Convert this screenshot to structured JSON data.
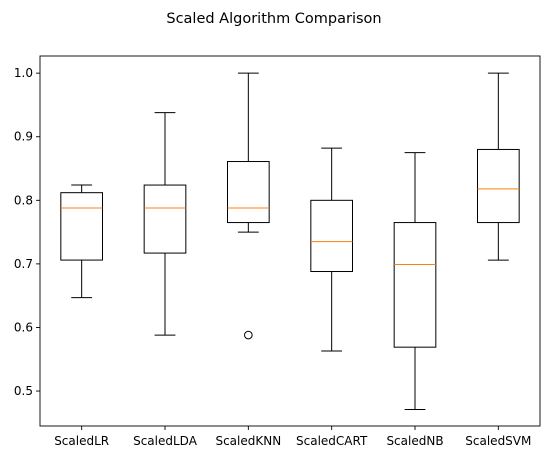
{
  "chart_data": {
    "type": "boxplot",
    "title": "Scaled Algorithm Comparison",
    "xlabel": "",
    "ylabel": "",
    "ylim": [
      0.445,
      1.027
    ],
    "yticks": [
      0.5,
      0.6,
      0.7,
      0.8,
      0.9,
      1.0
    ],
    "ytick_labels": [
      "0.5",
      "0.6",
      "0.7",
      "0.8",
      "0.9",
      "1.0"
    ],
    "grid": false,
    "categories": [
      "ScaledLR",
      "ScaledLDA",
      "ScaledKNN",
      "ScaledCART",
      "ScaledNB",
      "ScaledSVM"
    ],
    "boxes": [
      {
        "name": "ScaledLR",
        "whisker_low": 0.647,
        "q1": 0.706,
        "median": 0.788,
        "q3": 0.812,
        "whisker_high": 0.824,
        "outliers": []
      },
      {
        "name": "ScaledLDA",
        "whisker_low": 0.588,
        "q1": 0.717,
        "median": 0.788,
        "q3": 0.824,
        "whisker_high": 0.938,
        "outliers": []
      },
      {
        "name": "ScaledKNN",
        "whisker_low": 0.75,
        "q1": 0.765,
        "median": 0.788,
        "q3": 0.861,
        "whisker_high": 1.0,
        "outliers": [
          0.588
        ]
      },
      {
        "name": "ScaledCART",
        "whisker_low": 0.563,
        "q1": 0.688,
        "median": 0.735,
        "q3": 0.8,
        "whisker_high": 0.882,
        "outliers": []
      },
      {
        "name": "ScaledNB",
        "whisker_low": 0.471,
        "q1": 0.569,
        "median": 0.699,
        "q3": 0.765,
        "whisker_high": 0.875,
        "outliers": []
      },
      {
        "name": "ScaledSVM",
        "whisker_low": 0.706,
        "q1": 0.765,
        "median": 0.818,
        "q3": 0.88,
        "whisker_high": 1.0,
        "outliers": []
      }
    ],
    "colors": {
      "box": "#000000",
      "median": "#ff7f0e",
      "outlier_edge": "#000000"
    }
  }
}
